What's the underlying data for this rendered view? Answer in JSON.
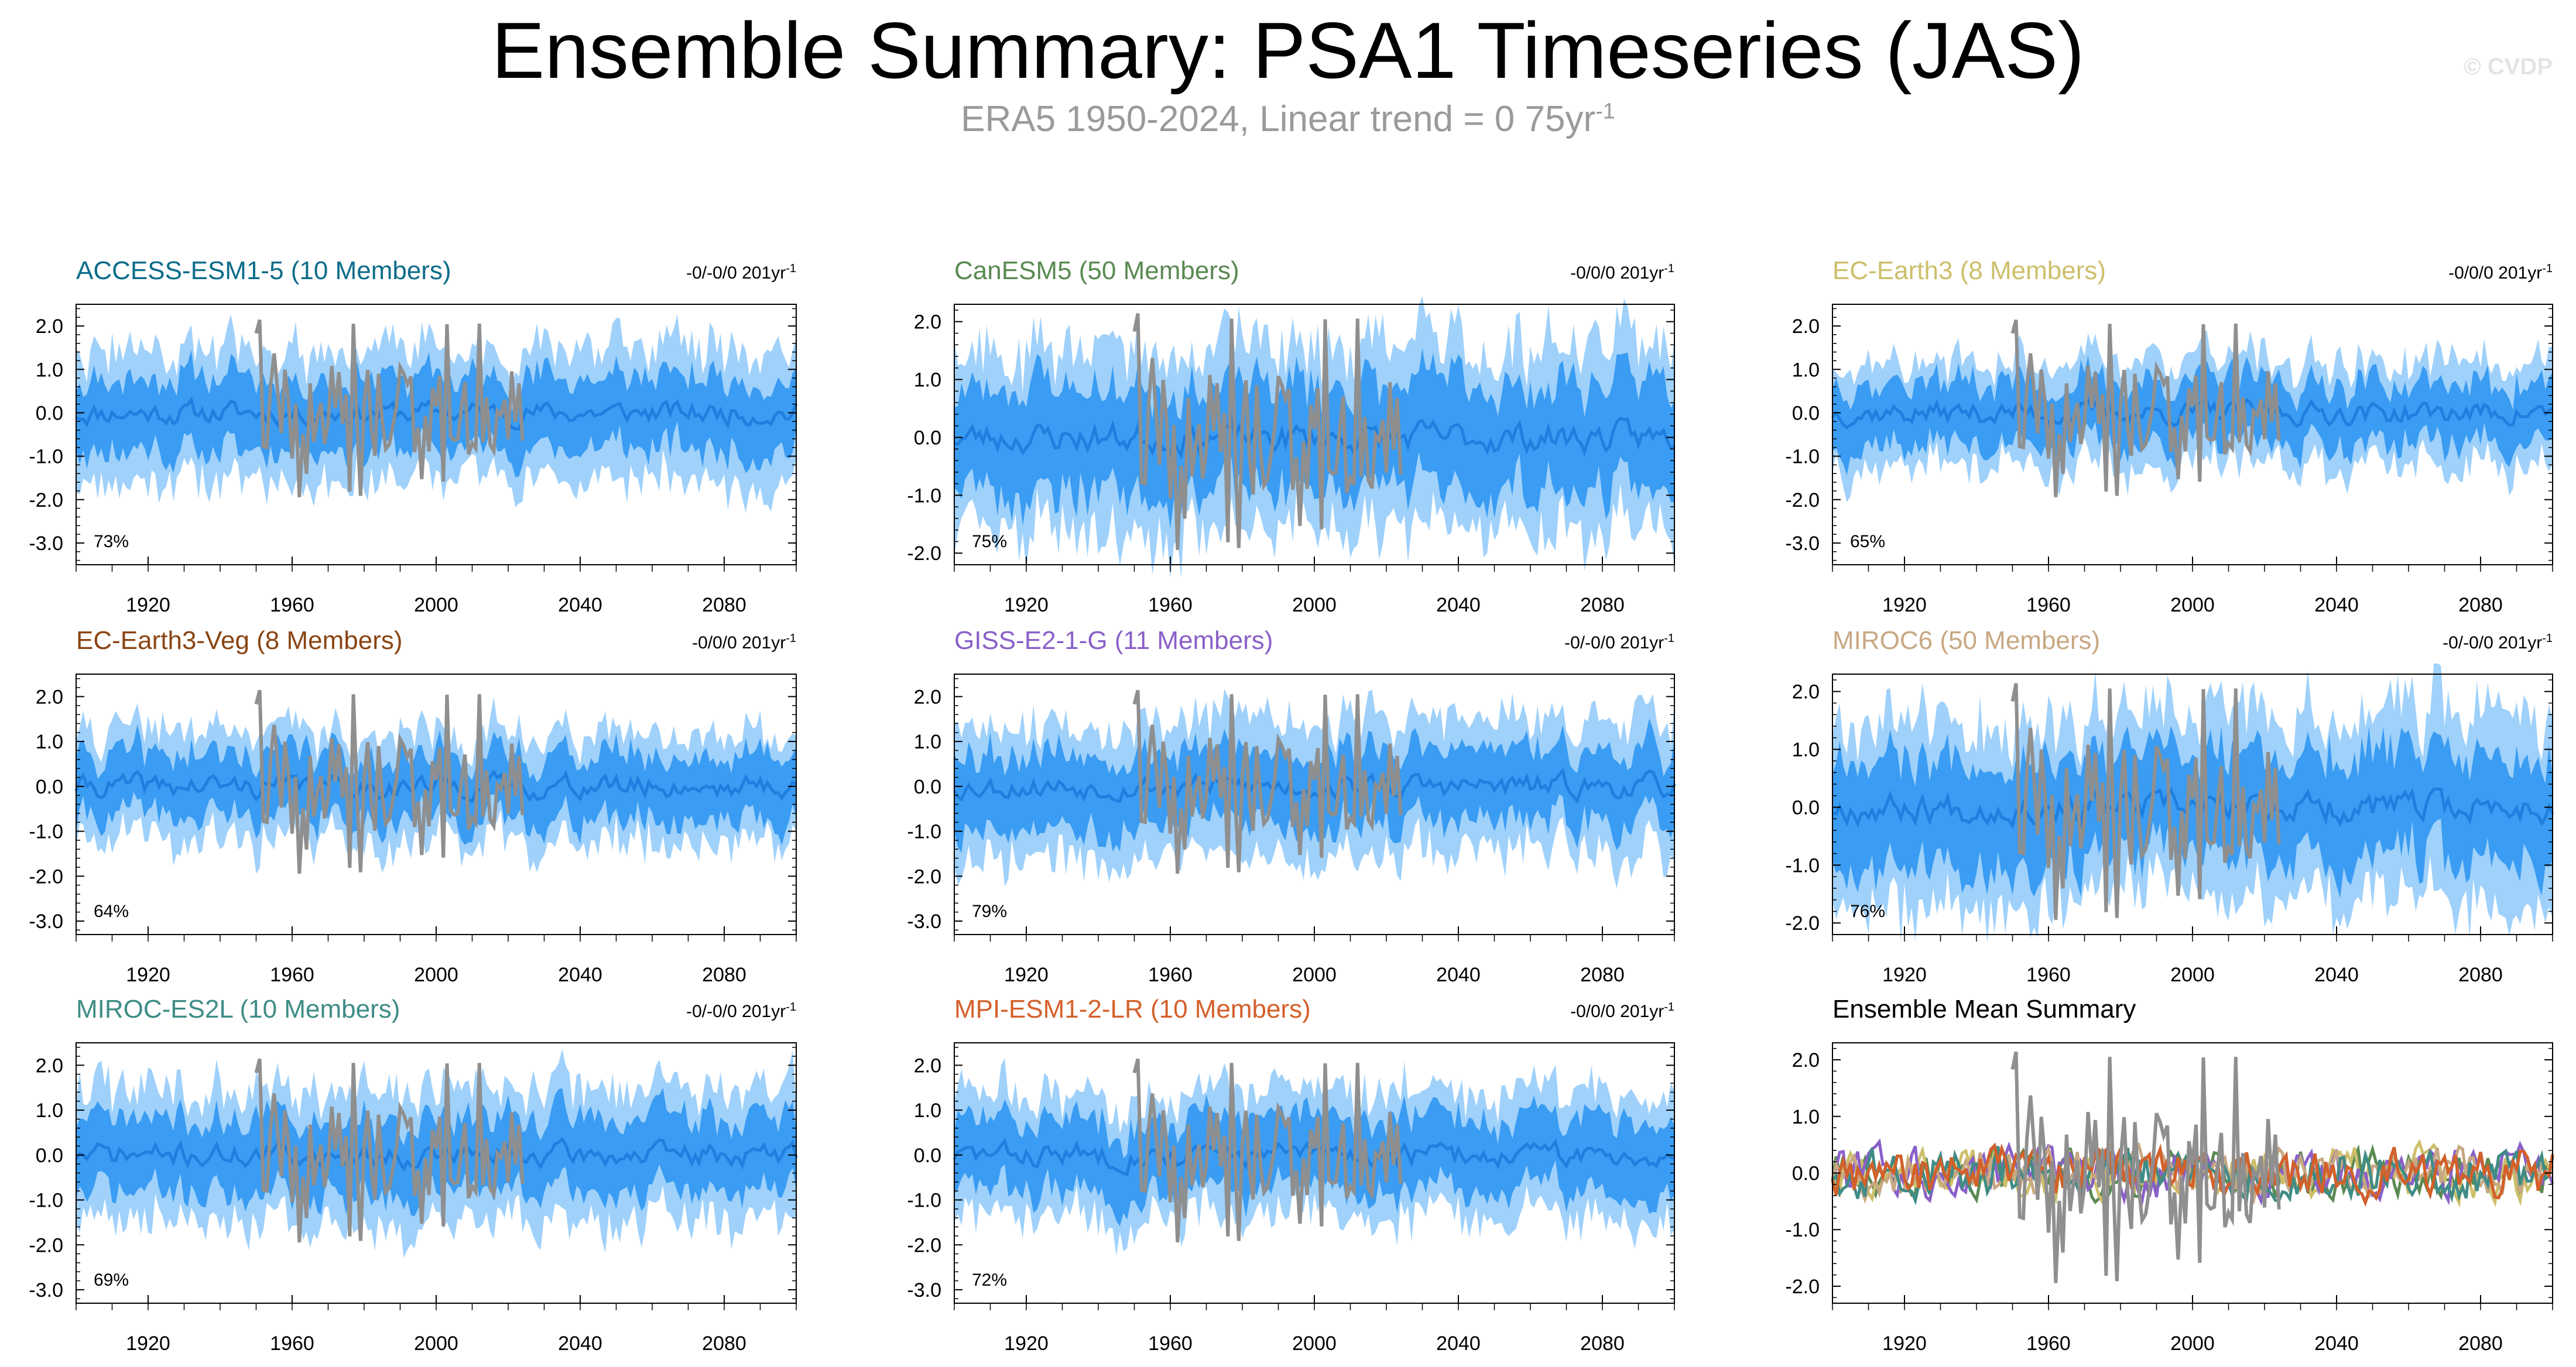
{
  "figure": {
    "title": "Ensemble Summary: PSA1 Timeseries (JAS)",
    "subtitle_main": "ERA5 1950-2024, Linear trend = 0 75yr",
    "subtitle_sup": "-1",
    "watermark": "© CVDP"
  },
  "colors": {
    "outer_band": "#9fd1fb",
    "inner_band": "#3a9cf2",
    "ensemble_mean": "#1f7fe0",
    "observations": "#8f8f8f",
    "axis": "#000000"
  },
  "chart_data": [
    {
      "type": "area",
      "title": "ACCESS-ESM1-5 (10 Members)",
      "title_color": "#0c6c8a",
      "trend_label": "-0/-0/0 201yr",
      "trend_sup": "-1",
      "percent_label": "73%",
      "x_range": [
        1900,
        2100
      ],
      "ylim": [
        -3.5,
        2.5
      ],
      "xticks": [
        1920,
        1960,
        2000,
        2040,
        2080
      ],
      "yticks": [
        2.0,
        1.0,
        0.0,
        -1.0,
        -2.0,
        -3.0
      ],
      "ytick_labels": [
        "2.0",
        "1.0",
        "0.0",
        "-1.0",
        "-2.0",
        "-3.0"
      ],
      "band_outer": 1.5,
      "band_inner": 0.8,
      "seed": 11,
      "series": [
        {
          "name": "Ensemble range",
          "kind": "band"
        },
        {
          "name": "Ensemble mean",
          "kind": "line"
        },
        {
          "name": "ERA5",
          "kind": "obs",
          "years": [
            1950,
            2024
          ]
        }
      ]
    },
    {
      "type": "area",
      "title": "CanESM5 (50 Members)",
      "title_color": "#5a8a52",
      "trend_label": "-0/0/0 201yr",
      "trend_sup": "-1",
      "percent_label": "75%",
      "x_range": [
        1900,
        2100
      ],
      "ylim": [
        -2.2,
        2.3
      ],
      "xticks": [
        1920,
        1960,
        2000,
        2040,
        2080
      ],
      "yticks": [
        2.0,
        1.0,
        0.0,
        -1.0,
        -2.0
      ],
      "ytick_labels": [
        "2.0",
        "1.0",
        "0.0",
        "-1.0",
        "-2.0"
      ],
      "band_outer": 1.6,
      "band_inner": 0.9,
      "seed": 23,
      "series": [
        {
          "name": "Ensemble range",
          "kind": "band"
        },
        {
          "name": "Ensemble mean",
          "kind": "line"
        },
        {
          "name": "ERA5",
          "kind": "obs",
          "years": [
            1950,
            2024
          ]
        }
      ]
    },
    {
      "type": "area",
      "title": "EC-Earth3 (8 Members)",
      "title_color": "#cdbf6a",
      "trend_label": "-0/0/0 201yr",
      "trend_sup": "-1",
      "percent_label": "65%",
      "x_range": [
        1900,
        2100
      ],
      "ylim": [
        -3.5,
        2.5
      ],
      "xticks": [
        1920,
        1960,
        2000,
        2040,
        2080
      ],
      "yticks": [
        2.0,
        1.0,
        0.0,
        -1.0,
        -2.0,
        -3.0
      ],
      "ytick_labels": [
        "2.0",
        "1.0",
        "0.0",
        "-1.0",
        "-2.0",
        "-3.0"
      ],
      "band_outer": 1.2,
      "band_inner": 0.7,
      "seed": 37,
      "series": [
        {
          "name": "Ensemble range",
          "kind": "band"
        },
        {
          "name": "Ensemble mean",
          "kind": "line"
        },
        {
          "name": "ERA5",
          "kind": "obs",
          "years": [
            1950,
            2024
          ]
        }
      ]
    },
    {
      "type": "area",
      "title": "EC-Earth3-Veg (8 Members)",
      "title_color": "#8a4513",
      "trend_label": "-0/0/0 201yr",
      "trend_sup": "-1",
      "percent_label": "64%",
      "x_range": [
        1900,
        2100
      ],
      "ylim": [
        -3.3,
        2.5
      ],
      "xticks": [
        1920,
        1960,
        2000,
        2040,
        2080
      ],
      "yticks": [
        2.0,
        1.0,
        0.0,
        -1.0,
        -2.0,
        -3.0
      ],
      "ytick_labels": [
        "2.0",
        "1.0",
        "0.0",
        "-1.0",
        "-2.0",
        "-3.0"
      ],
      "band_outer": 1.2,
      "band_inner": 0.7,
      "seed": 41,
      "series": [
        {
          "name": "Ensemble range",
          "kind": "band"
        },
        {
          "name": "Ensemble mean",
          "kind": "line"
        },
        {
          "name": "ERA5",
          "kind": "obs",
          "years": [
            1950,
            2024
          ]
        }
      ]
    },
    {
      "type": "area",
      "title": "GISS-E2-1-G (11 Members)",
      "title_color": "#8a60c8",
      "trend_label": "-0/-0/0 201yr",
      "trend_sup": "-1",
      "percent_label": "79%",
      "x_range": [
        1900,
        2100
      ],
      "ylim": [
        -3.3,
        2.5
      ],
      "xticks": [
        1920,
        1960,
        2000,
        2040,
        2080
      ],
      "yticks": [
        2.0,
        1.0,
        0.0,
        -1.0,
        -2.0,
        -3.0
      ],
      "ytick_labels": [
        "2.0",
        "1.0",
        "0.0",
        "-1.0",
        "-2.0",
        "-3.0"
      ],
      "band_outer": 1.5,
      "band_inner": 0.8,
      "seed": 53,
      "series": [
        {
          "name": "Ensemble range",
          "kind": "band"
        },
        {
          "name": "Ensemble mean",
          "kind": "line"
        },
        {
          "name": "ERA5",
          "kind": "obs",
          "years": [
            1950,
            2024
          ]
        }
      ]
    },
    {
      "type": "area",
      "title": "MIROC6 (50 Members)",
      "title_color": "#c8a882",
      "trend_label": "-0/-0/0 201yr",
      "trend_sup": "-1",
      "percent_label": "76%",
      "x_range": [
        1900,
        2100
      ],
      "ylim": [
        -2.2,
        2.3
      ],
      "xticks": [
        1920,
        1960,
        2000,
        2040,
        2080
      ],
      "yticks": [
        2.0,
        1.0,
        0.0,
        -1.0,
        -2.0
      ],
      "ytick_labels": [
        "2.0",
        "1.0",
        "0.0",
        "-1.0",
        "-2.0"
      ],
      "band_outer": 1.6,
      "band_inner": 0.9,
      "seed": 67,
      "series": [
        {
          "name": "Ensemble range",
          "kind": "band"
        },
        {
          "name": "Ensemble mean",
          "kind": "line"
        },
        {
          "name": "ERA5",
          "kind": "obs",
          "years": [
            1950,
            2024
          ]
        }
      ]
    },
    {
      "type": "area",
      "title": "MIROC-ES2L (10 Members)",
      "title_color": "#3f8c86",
      "trend_label": "-0/-0/0 201yr",
      "trend_sup": "-1",
      "percent_label": "69%",
      "x_range": [
        1900,
        2100
      ],
      "ylim": [
        -3.3,
        2.5
      ],
      "xticks": [
        1920,
        1960,
        2000,
        2040,
        2080
      ],
      "yticks": [
        2.0,
        1.0,
        0.0,
        -1.0,
        -2.0,
        -3.0
      ],
      "ytick_labels": [
        "2.0",
        "1.0",
        "0.0",
        "-1.0",
        "-2.0",
        "-3.0"
      ],
      "band_outer": 1.5,
      "band_inner": 0.8,
      "seed": 71,
      "series": [
        {
          "name": "Ensemble range",
          "kind": "band"
        },
        {
          "name": "Ensemble mean",
          "kind": "line"
        },
        {
          "name": "ERA5",
          "kind": "obs",
          "years": [
            1950,
            2024
          ]
        }
      ]
    },
    {
      "type": "area",
      "title": "MPI-ESM1-2-LR (10 Members)",
      "title_color": "#d4602a",
      "trend_label": "-0/0/0 201yr",
      "trend_sup": "-1",
      "percent_label": "72%",
      "x_range": [
        1900,
        2100
      ],
      "ylim": [
        -3.3,
        2.5
      ],
      "xticks": [
        1920,
        1960,
        2000,
        2040,
        2080
      ],
      "yticks": [
        2.0,
        1.0,
        0.0,
        -1.0,
        -2.0,
        -3.0
      ],
      "ytick_labels": [
        "2.0",
        "1.0",
        "0.0",
        "-1.0",
        "-2.0",
        "-3.0"
      ],
      "band_outer": 1.4,
      "band_inner": 0.8,
      "seed": 83,
      "series": [
        {
          "name": "Ensemble range",
          "kind": "band"
        },
        {
          "name": "Ensemble mean",
          "kind": "line"
        },
        {
          "name": "ERA5",
          "kind": "obs",
          "years": [
            1950,
            2024
          ]
        }
      ]
    },
    {
      "type": "line",
      "title": "Ensemble Mean Summary",
      "title_color": "#000000",
      "trend_label": "",
      "trend_sup": "",
      "percent_label": "",
      "x_range": [
        1900,
        2100
      ],
      "ylim": [
        -2.3,
        2.3
      ],
      "xticks": [
        1920,
        1960,
        2000,
        2040,
        2080
      ],
      "yticks": [
        2.0,
        1.0,
        0.0,
        -1.0,
        -2.0
      ],
      "ytick_labels": [
        "2.0",
        "1.0",
        "0.0",
        "-1.0",
        "-2.0"
      ],
      "seed": 97,
      "series": [
        {
          "name": "ACCESS-ESM1-5",
          "color": "#0c6c8a"
        },
        {
          "name": "CanESM5",
          "color": "#5a8a52"
        },
        {
          "name": "EC-Earth3",
          "color": "#cdbf6a"
        },
        {
          "name": "EC-Earth3-Veg",
          "color": "#8a4513"
        },
        {
          "name": "GISS-E2-1-G",
          "color": "#8a60c8"
        },
        {
          "name": "MIROC6",
          "color": "#c8a882"
        },
        {
          "name": "MIROC-ES2L",
          "color": "#3f8c86"
        },
        {
          "name": "MPI-ESM1-2-LR",
          "color": "#d4602a"
        },
        {
          "name": "ERA5",
          "color": "#8f8f8f",
          "years": [
            1950,
            2024
          ]
        }
      ]
    }
  ]
}
